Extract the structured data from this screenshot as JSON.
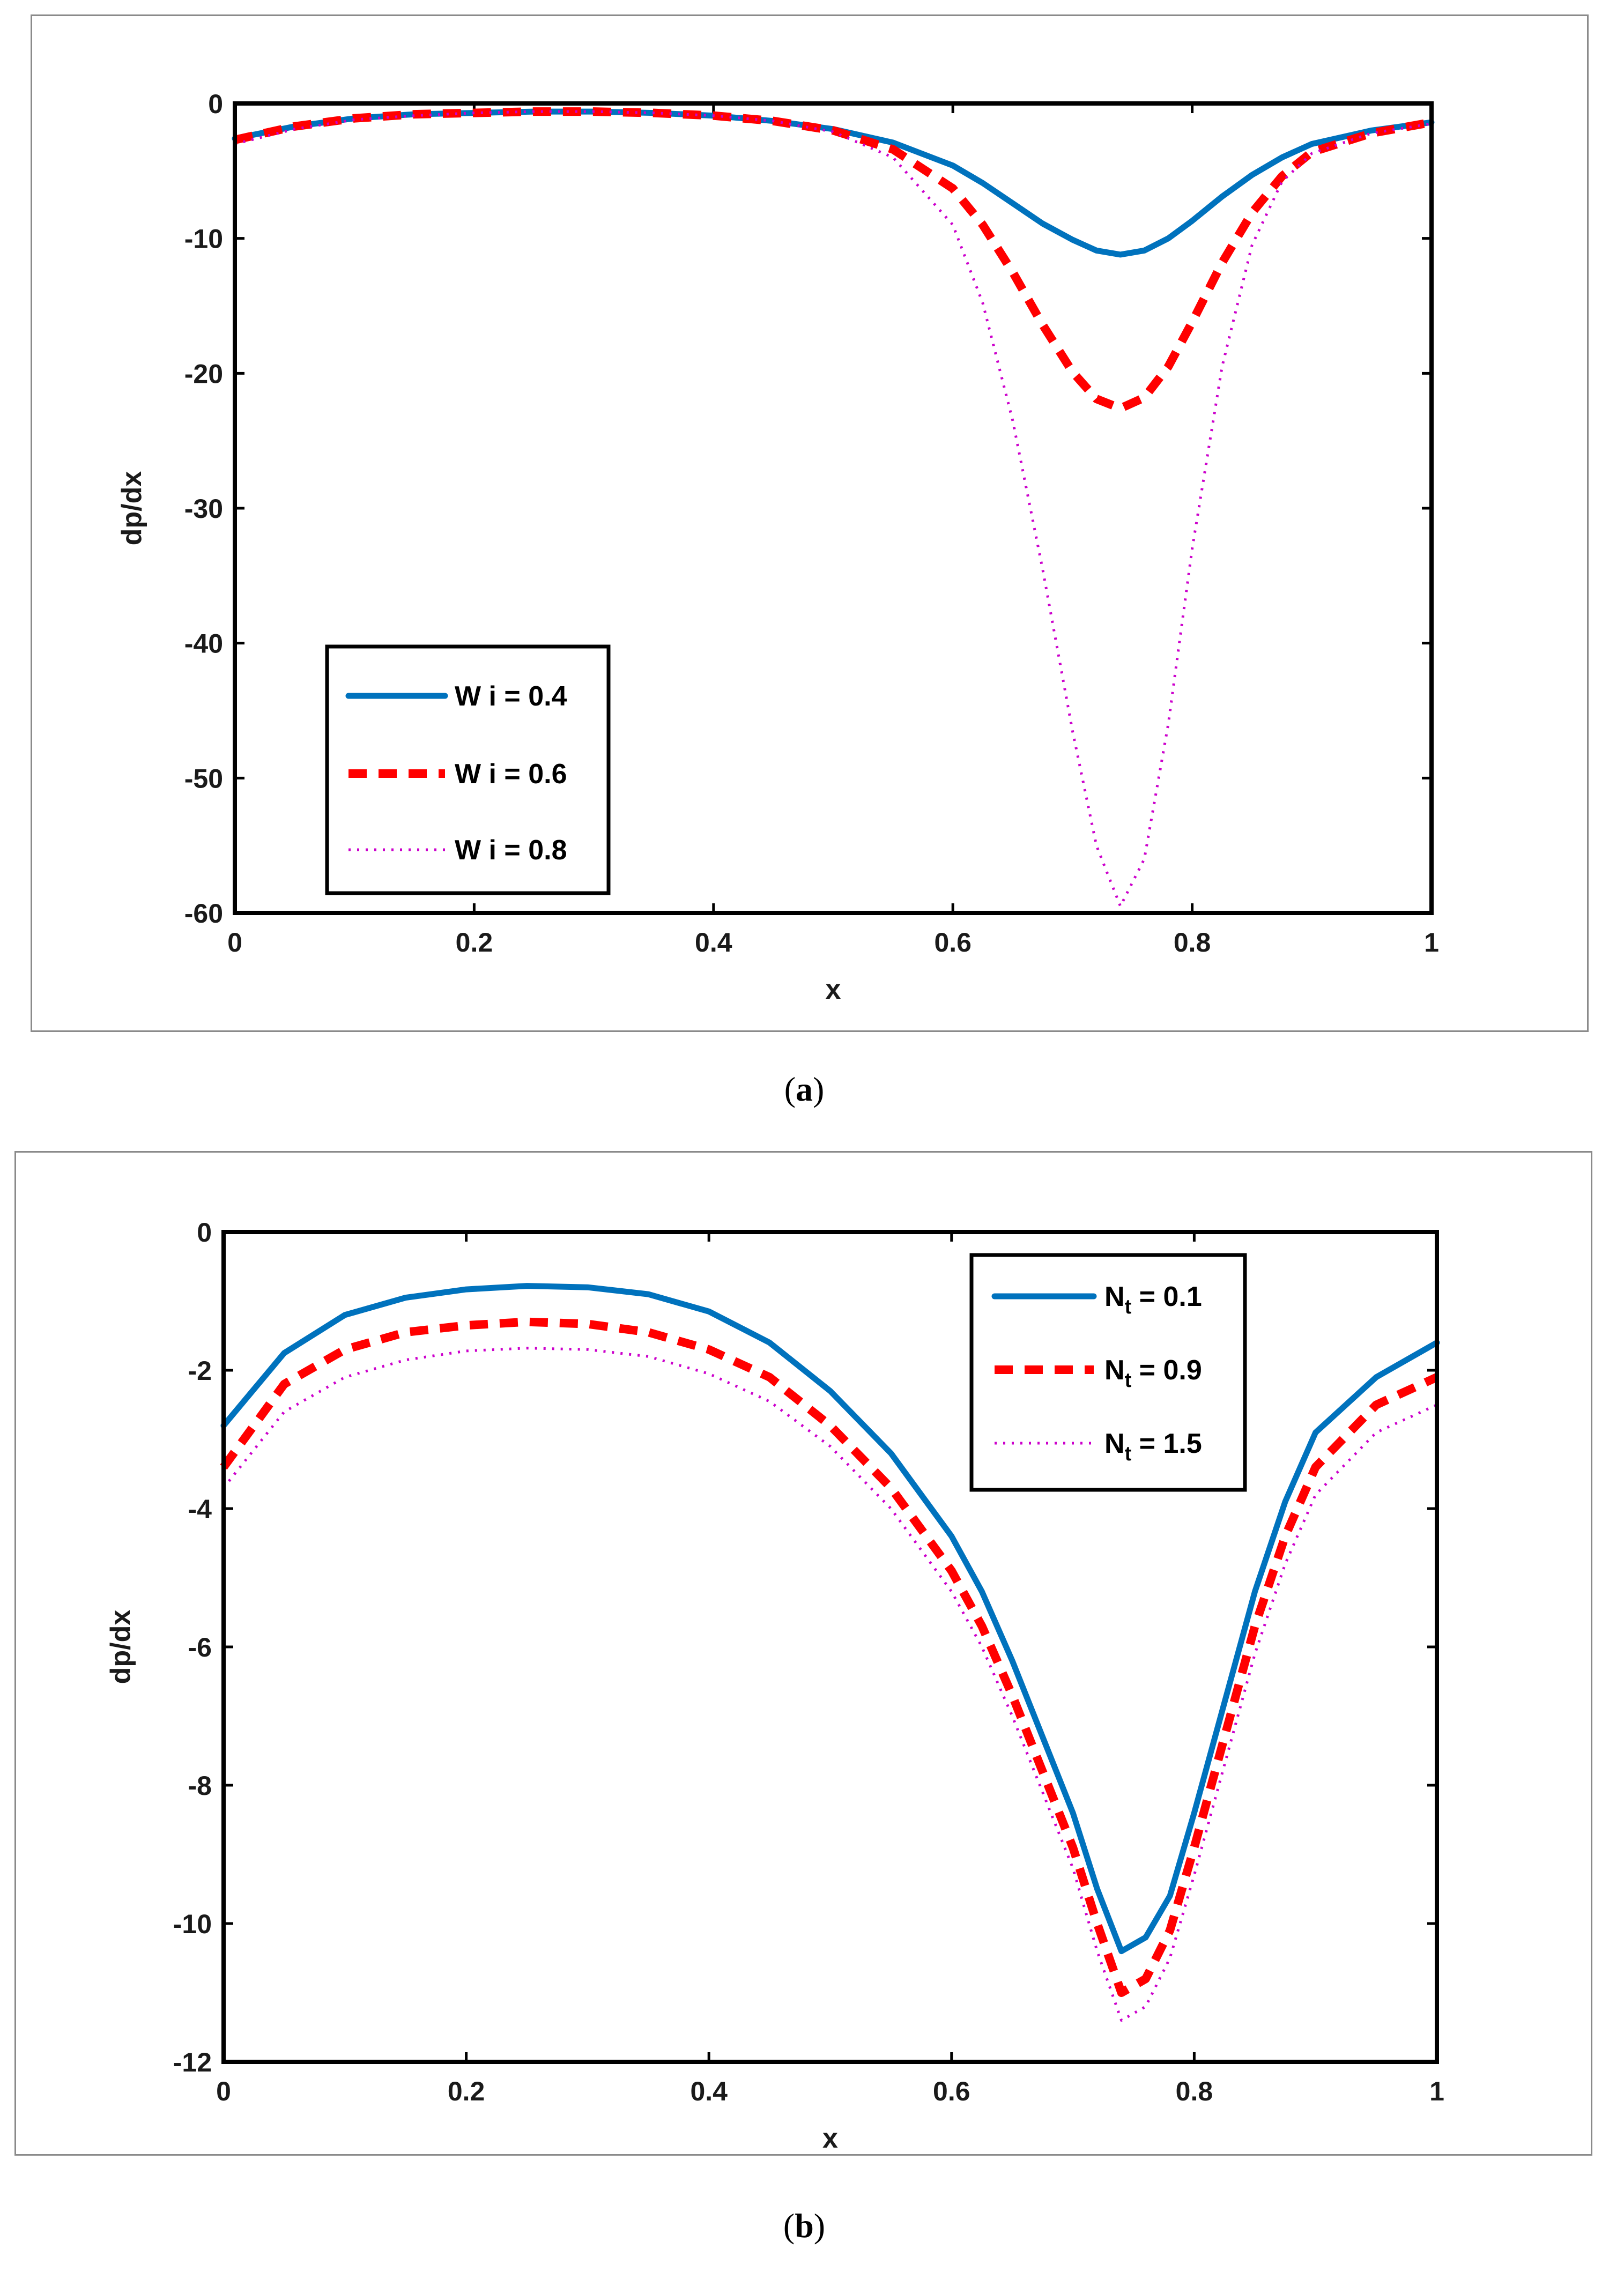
{
  "chart_data": [
    {
      "panel": "a",
      "caption_open": "(",
      "caption_label": "a",
      "caption_close": ")",
      "type": "line",
      "xlabel": "x",
      "ylabel": "dp/dx",
      "xlim": [
        0,
        1
      ],
      "ylim": [
        -60,
        0
      ],
      "xticks": [
        "0",
        "0.2",
        "0.4",
        "0.6",
        "0.8",
        "1"
      ],
      "yticks": [
        "0",
        "-10",
        "-20",
        "-30",
        "-40",
        "-50",
        "-60"
      ],
      "x": [
        0,
        0.05,
        0.1,
        0.15,
        0.2,
        0.25,
        0.3,
        0.35,
        0.4,
        0.45,
        0.5,
        0.55,
        0.6,
        0.625,
        0.65,
        0.675,
        0.7,
        0.72,
        0.74,
        0.76,
        0.78,
        0.8,
        0.825,
        0.85,
        0.875,
        0.9,
        0.95,
        1
      ],
      "legend_position": "bottom-left",
      "series": [
        {
          "name": "W i = 0.4",
          "color": "#0072BD",
          "style": "solid",
          "values": [
            -2.6,
            -1.7,
            -1.1,
            -0.8,
            -0.7,
            -0.6,
            -0.6,
            -0.7,
            -0.9,
            -1.3,
            -1.9,
            -2.9,
            -4.6,
            -5.9,
            -7.4,
            -8.9,
            -10.1,
            -10.9,
            -11.2,
            -10.9,
            -10.0,
            -8.7,
            -6.9,
            -5.3,
            -4.0,
            -3.0,
            -2.0,
            -1.4
          ]
        },
        {
          "name": "W i = 0.6",
          "color": "#FF0000",
          "style": "dashed",
          "values": [
            -2.7,
            -1.7,
            -1.1,
            -0.8,
            -0.7,
            -0.6,
            -0.6,
            -0.7,
            -0.9,
            -1.3,
            -2.0,
            -3.4,
            -6.3,
            -9.0,
            -12.5,
            -16.4,
            -19.9,
            -21.9,
            -22.6,
            -21.8,
            -19.5,
            -16.2,
            -11.8,
            -8.1,
            -5.4,
            -3.6,
            -2.2,
            -1.4
          ]
        },
        {
          "name": "W i = 0.8",
          "color": "#CC00CC",
          "style": "dotted",
          "values": [
            -3.0,
            -1.9,
            -1.2,
            -0.9,
            -0.7,
            -0.6,
            -0.6,
            -0.7,
            -0.9,
            -1.3,
            -2.1,
            -4.0,
            -9.0,
            -14.8,
            -23.5,
            -34.5,
            -46.5,
            -55.0,
            -59.5,
            -56.0,
            -46.0,
            -33.0,
            -19.5,
            -10.5,
            -5.8,
            -3.7,
            -2.2,
            -1.5
          ]
        }
      ]
    },
    {
      "panel": "b",
      "caption_open": "(",
      "caption_label": "b",
      "caption_close": ")",
      "type": "line",
      "xlabel": "x",
      "ylabel": "dp/dx",
      "xlim": [
        0,
        1
      ],
      "ylim": [
        -12,
        0
      ],
      "xticks": [
        "0",
        "0.2",
        "0.4",
        "0.6",
        "0.8",
        "1"
      ],
      "yticks": [
        "0",
        "-2",
        "-4",
        "-6",
        "-8",
        "-10",
        "-12"
      ],
      "x": [
        0,
        0.05,
        0.1,
        0.15,
        0.2,
        0.25,
        0.3,
        0.35,
        0.4,
        0.45,
        0.5,
        0.55,
        0.6,
        0.625,
        0.65,
        0.675,
        0.7,
        0.72,
        0.74,
        0.76,
        0.78,
        0.8,
        0.825,
        0.85,
        0.875,
        0.9,
        0.95,
        1
      ],
      "legend_position": "top-right",
      "series": [
        {
          "name_main": "N",
          "name_sub": "t",
          "name_rest": " = 0.1",
          "color": "#0072BD",
          "style": "solid",
          "values": [
            -2.8,
            -1.75,
            -1.2,
            -0.95,
            -0.83,
            -0.78,
            -0.8,
            -0.9,
            -1.15,
            -1.6,
            -2.3,
            -3.2,
            -4.4,
            -5.2,
            -6.2,
            -7.3,
            -8.4,
            -9.5,
            -10.4,
            -10.2,
            -9.6,
            -8.4,
            -6.8,
            -5.2,
            -3.9,
            -2.9,
            -2.1,
            -1.6
          ]
        },
        {
          "name_main": "N",
          "name_sub": "t",
          "name_rest": " = 0.9",
          "color": "#FF0000",
          "style": "dashed",
          "values": [
            -3.4,
            -2.2,
            -1.7,
            -1.45,
            -1.35,
            -1.3,
            -1.33,
            -1.45,
            -1.7,
            -2.1,
            -2.8,
            -3.7,
            -4.9,
            -5.7,
            -6.7,
            -7.8,
            -8.9,
            -10.0,
            -11.0,
            -10.8,
            -10.1,
            -8.9,
            -7.3,
            -5.7,
            -4.4,
            -3.4,
            -2.5,
            -2.1
          ]
        },
        {
          "name_main": "N",
          "name_sub": "t",
          "name_rest": " = 1.5",
          "color": "#CC00CC",
          "style": "dotted",
          "values": [
            -3.7,
            -2.6,
            -2.1,
            -1.85,
            -1.72,
            -1.68,
            -1.7,
            -1.8,
            -2.05,
            -2.45,
            -3.1,
            -4.0,
            -5.2,
            -6.0,
            -7.0,
            -8.1,
            -9.2,
            -10.4,
            -11.4,
            -11.2,
            -10.5,
            -9.3,
            -7.7,
            -6.1,
            -4.8,
            -3.8,
            -2.9,
            -2.5
          ]
        }
      ]
    }
  ]
}
